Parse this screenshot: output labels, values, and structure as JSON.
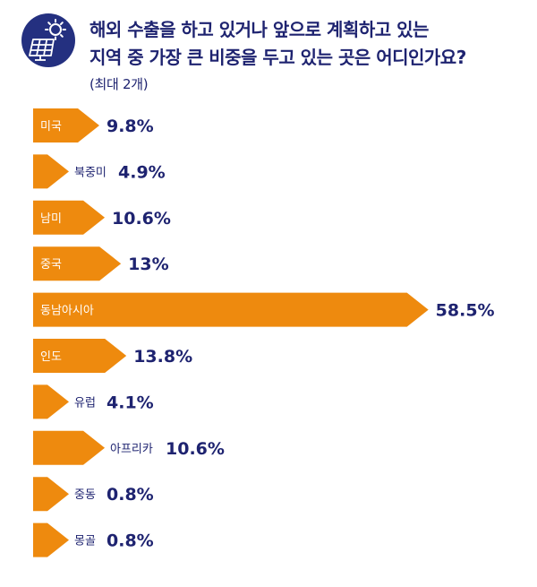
{
  "chart_data": {
    "type": "bar",
    "orientation": "horizontal",
    "title_lines": [
      "해외 수출을 하고 있거나 앞으로 계획하고 있는",
      "지역 중 가장 큰 비중을 두고 있는 곳은 어디인가요?"
    ],
    "subtitle": "(최대 2개)",
    "categories": [
      "미국",
      "북중미",
      "남미",
      "중국",
      "동남아시아",
      "인도",
      "유럽",
      "아프리카",
      "중동",
      "몽골"
    ],
    "values": [
      9.8,
      4.9,
      10.6,
      13,
      58.5,
      13.8,
      4.1,
      10.6,
      0.8,
      0.8
    ],
    "value_labels": [
      "9.8%",
      "4.9%",
      "10.6%",
      "13%",
      "58.5%",
      "13.8%",
      "4.1%",
      "10.6%",
      "0.8%",
      "0.8%"
    ],
    "unit": "%",
    "bar_color": "#ee8a0e",
    "label_color_inside": "#ffffff",
    "label_color_outside": "#1e2370",
    "value_color": "#1e2370",
    "grid": false
  },
  "colors": {
    "title": "#1e2370",
    "logo_bg": "#243080"
  },
  "icon": "solar-panel-sun-icon"
}
